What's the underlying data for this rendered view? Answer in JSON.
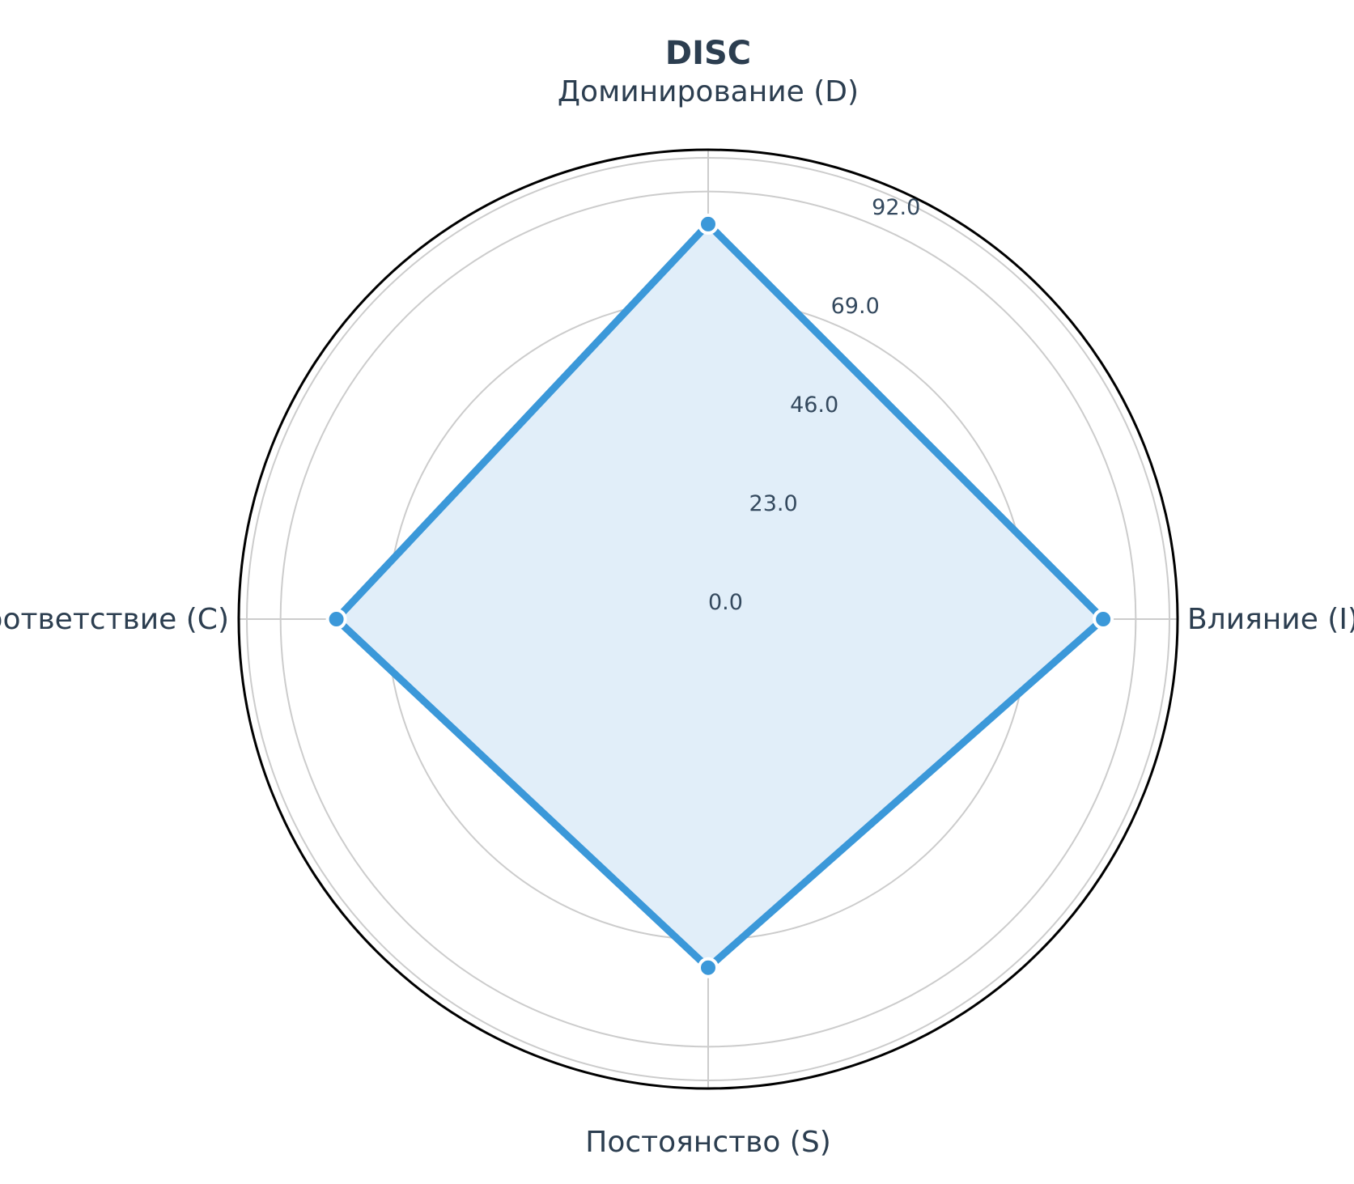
{
  "chart_data": {
    "type": "radar",
    "title": "DISC",
    "categories": [
      "Доминирование (D)",
      "Влияние (I)",
      "Постоянство (S)",
      "Соответствие (C)"
    ],
    "series": [
      {
        "values": [
          85,
          85,
          75,
          80
        ]
      }
    ],
    "rlim": [
      0,
      101
    ],
    "rticks": [
      0,
      23,
      46,
      69,
      92
    ],
    "rtick_labels": [
      "0.0",
      "23.0",
      "46.0",
      "69.0",
      "92.0"
    ],
    "grid": true,
    "colors": {
      "line": "#3b98d9",
      "fill": "#e1eef9",
      "text": "#2c3e50",
      "grid": "#cccccc",
      "marker_edge": "#ffffff"
    }
  }
}
